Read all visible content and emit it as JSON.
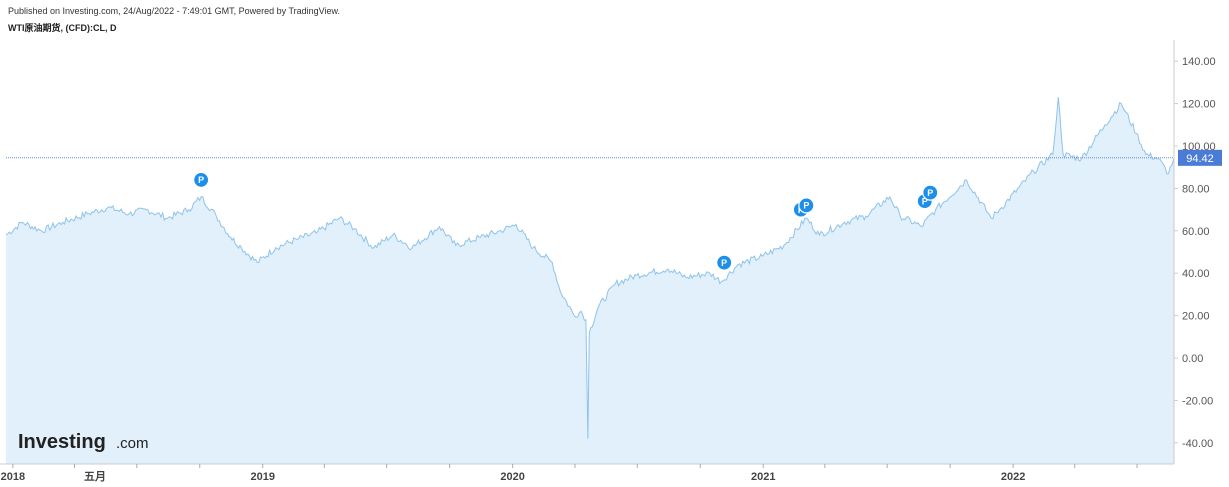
{
  "header": {
    "published": "Published on Investing.com, 24/Aug/2022 - 7:49:01 GMT, Powered by TradingView.",
    "symbol": "WTI原油期货, (CFD):CL, D"
  },
  "logo": {
    "main": "Investing",
    "suffix": ".com"
  },
  "colors": {
    "line": "#8fc3ea",
    "fill": "#e1f0fa",
    "price_tag": "#4a7bd6",
    "price_line": "#4a7bd6",
    "marker": "#1e8fe8",
    "axis": "#cccccc"
  },
  "chart_data": {
    "type": "area",
    "title": "",
    "xlabel": "",
    "ylabel": "",
    "ylim": [
      -50,
      150
    ],
    "y_ticks": [
      "140.00",
      "120.00",
      "100.00",
      "80.00",
      "60.00",
      "40.00",
      "20.00",
      "0.00",
      "-20.00",
      "-40.00"
    ],
    "y_tick_values": [
      140,
      120,
      100,
      80,
      60,
      40,
      20,
      0,
      -20,
      -40
    ],
    "x_range": [
      "2017-12-22",
      "2022-08-24"
    ],
    "x_ticks": [
      {
        "label": "2018",
        "date": "2018-01-01"
      },
      {
        "label": "五月",
        "date": "2018-05-01"
      },
      {
        "label": "2019",
        "date": "2019-01-01"
      },
      {
        "label": "2020",
        "date": "2020-01-01"
      },
      {
        "label": "2021",
        "date": "2021-01-01"
      },
      {
        "label": "2022",
        "date": "2022-01-01"
      }
    ],
    "last_price": 94.42,
    "last_price_label": "94.42",
    "series": [
      {
        "x": [
          "2017-12-22",
          "2018-01-15",
          "2018-02-12",
          "2018-03-15",
          "2018-04-20",
          "2018-05-20",
          "2018-06-20",
          "2018-07-15",
          "2018-08-15",
          "2018-09-15",
          "2018-10-03",
          "2018-10-25",
          "2018-11-15",
          "2018-12-01",
          "2018-12-24",
          "2019-01-20",
          "2019-02-20",
          "2019-03-20",
          "2019-04-23",
          "2019-05-15",
          "2019-06-12",
          "2019-07-10",
          "2019-08-07",
          "2019-09-16",
          "2019-10-10",
          "2019-11-15",
          "2019-12-15",
          "2020-01-06",
          "2020-01-31",
          "2020-02-28",
          "2020-03-10",
          "2020-03-31",
          "2020-04-10",
          "2020-04-17",
          "2020-04-20",
          "2020-04-22",
          "2020-05-05",
          "2020-05-30",
          "2020-06-30",
          "2020-08-15",
          "2020-09-10",
          "2020-10-15",
          "2020-11-01",
          "2020-11-25",
          "2020-12-31",
          "2021-01-31",
          "2021-03-05",
          "2021-03-24",
          "2021-04-30",
          "2021-05-31",
          "2021-07-05",
          "2021-07-20",
          "2021-08-20",
          "2021-09-10",
          "2021-10-25",
          "2021-11-30",
          "2021-12-15",
          "2022-01-31",
          "2022-02-28",
          "2022-03-08",
          "2022-03-15",
          "2022-04-11",
          "2022-05-15",
          "2022-06-08",
          "2022-06-30",
          "2022-07-14",
          "2022-08-01",
          "2022-08-16",
          "2022-08-24"
        ],
        "values": [
          58,
          64,
          60,
          64,
          68,
          71,
          68,
          70,
          66,
          70,
          76,
          67,
          57,
          52,
          45,
          52,
          56,
          59,
          66,
          61,
          52,
          58,
          52,
          62,
          53,
          57,
          60,
          63,
          52,
          45,
          32,
          20,
          22,
          18,
          -38,
          12,
          24,
          35,
          39,
          42,
          38,
          40,
          36,
          44,
          48,
          53,
          66,
          58,
          64,
          67,
          76,
          67,
          62,
          70,
          84,
          66,
          71,
          88,
          96,
          123,
          96,
          94,
          110,
          120,
          106,
          96,
          94,
          87,
          94.42
        ]
      }
    ],
    "annotations": [
      {
        "label": "P",
        "date": "2018-10-03",
        "value": 84
      },
      {
        "label": "P",
        "date": "2020-11-05",
        "value": 45
      },
      {
        "label": "P",
        "date": "2021-02-25",
        "value": 70
      },
      {
        "label": "P",
        "date": "2021-03-05",
        "value": 72
      },
      {
        "label": "P",
        "date": "2021-08-25",
        "value": 74
      },
      {
        "label": "P",
        "date": "2021-09-02",
        "value": 78
      }
    ],
    "grid": false,
    "legend": "none"
  }
}
